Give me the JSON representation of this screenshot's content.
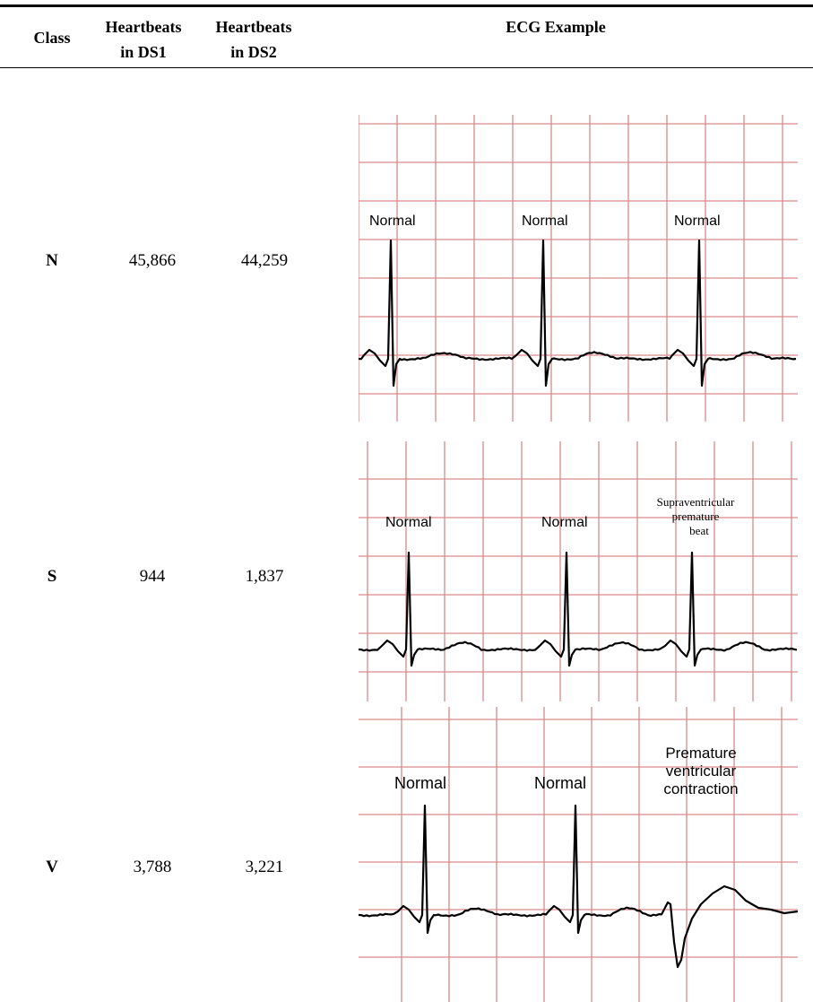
{
  "table": {
    "headers": {
      "class": "Class",
      "ds1_line1": "Heartbeats",
      "ds1_line2": "in DS1",
      "ds2_line1": "Heartbeats",
      "ds2_line2": "in DS2",
      "example": "ECG Example"
    },
    "rows": [
      {
        "class": "N",
        "ds1": "45,866",
        "ds2": "44,259",
        "labels": [
          "Normal",
          "Normal",
          "Normal"
        ]
      },
      {
        "class": "S",
        "ds1": "944",
        "ds2": "1,837",
        "labels": [
          "Normal",
          "Normal",
          "Supraventricular",
          "premature",
          "beat"
        ]
      },
      {
        "class": "V",
        "ds1": "3,788",
        "ds2": "3,221",
        "labels": [
          "Normal",
          "Normal",
          "Premature",
          "ventricular",
          "contraction"
        ]
      }
    ]
  },
  "colors": {
    "grid": "#d98a8a",
    "trace": "#000000",
    "rule": "#000000"
  }
}
